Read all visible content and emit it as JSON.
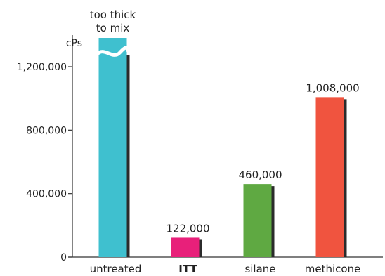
{
  "chart_data": {
    "type": "bar",
    "categories": [
      "untreated",
      "ITT",
      "silane",
      "methicone"
    ],
    "values": [
      null,
      122000,
      460000,
      1008000
    ],
    "data_labels": [
      "",
      "122,000",
      "460,000",
      "1,008,000"
    ],
    "bar_colors": [
      "#3fc0cf",
      "#e8207a",
      "#5fa942",
      "#f0543f"
    ],
    "bold_categories": [
      "ITT"
    ],
    "ylabel": "cPs",
    "ylim": [
      0,
      1200000
    ],
    "yticks": [
      0,
      400000,
      800000,
      1200000
    ],
    "ytick_labels": [
      "0",
      "400,000",
      "800,000",
      "1,200,000"
    ],
    "annotations": [
      {
        "category": "untreated",
        "lines": [
          "too thick",
          "to mix"
        ],
        "axis_break": true
      }
    ],
    "grid": false,
    "legend": "none",
    "bar_shadow": true
  }
}
